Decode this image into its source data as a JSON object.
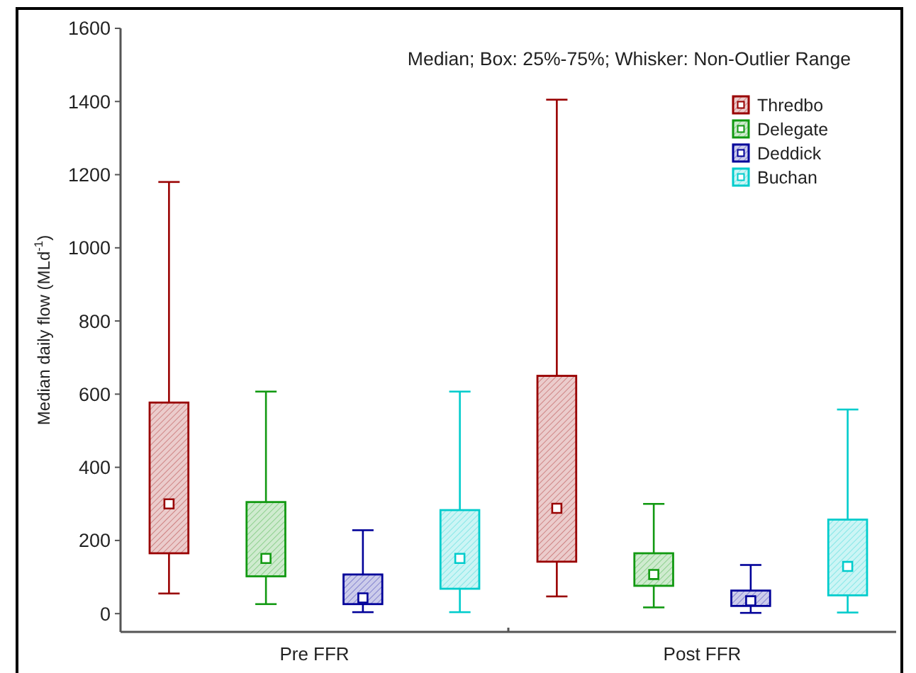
{
  "chart_data": {
    "type": "box",
    "title": null,
    "ylabel": "Median daily flow (MLd$^{-1}$)",
    "annotations": [
      "Median; Box: 25%-75%; Whisker: Non-Outlier Range"
    ],
    "categories": [
      "Pre FFR",
      "Post FFR"
    ],
    "ylim": [
      -50,
      1600
    ],
    "yticks": [
      0,
      200,
      400,
      600,
      800,
      1000,
      1200,
      1400,
      1600
    ],
    "legend": "top right",
    "marker": "square",
    "series": [
      {
        "name": "Thredbo",
        "color": "#990000",
        "boxes": [
          {
            "low": 55,
            "q1": 165,
            "median": 300,
            "q3": 577,
            "high": 1180
          },
          {
            "low": 47,
            "q1": 142,
            "median": 288,
            "q3": 650,
            "high": 1405
          }
        ]
      },
      {
        "name": "Delegate",
        "color": "#119911",
        "boxes": [
          {
            "low": 26,
            "q1": 102,
            "median": 151,
            "q3": 305,
            "high": 607
          },
          {
            "low": 17,
            "q1": 76,
            "median": 107,
            "q3": 165,
            "high": 300
          }
        ]
      },
      {
        "name": "Deddick",
        "color": "#000099",
        "boxes": [
          {
            "low": 4,
            "q1": 26,
            "median": 43,
            "q3": 107,
            "high": 228
          },
          {
            "low": 2,
            "q1": 21,
            "median": 35,
            "q3": 63,
            "high": 133
          }
        ]
      },
      {
        "name": "Buchan",
        "color": "#00cccc",
        "boxes": [
          {
            "low": 4,
            "q1": 68,
            "median": 151,
            "q3": 283,
            "high": 607
          },
          {
            "low": 3,
            "q1": 50,
            "median": 129,
            "q3": 257,
            "high": 558
          }
        ]
      }
    ]
  }
}
